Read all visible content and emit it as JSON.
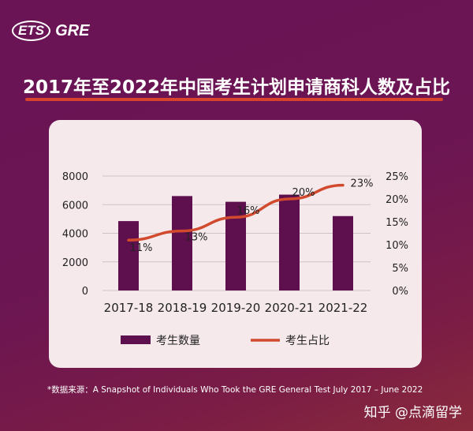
{
  "logo": {
    "ets": "ETS",
    "gre": "GRE"
  },
  "title": "2017年至2022年中国考生计划申请商科人数及占比",
  "chart_data": {
    "type": "bar+line",
    "categories": [
      "2017-18",
      "2018-19",
      "2019-20",
      "2020-21",
      "2021-22"
    ],
    "series": [
      {
        "name": "考生数量",
        "type": "bar",
        "axis": "left",
        "values": [
          4850,
          6600,
          6200,
          6700,
          5200
        ]
      },
      {
        "name": "考生占比",
        "type": "line",
        "axis": "right",
        "values": [
          11,
          13,
          16,
          20,
          23
        ],
        "labels": [
          "11%",
          "13%",
          "16%",
          "20%",
          "23%"
        ]
      }
    ],
    "left_axis": {
      "ylim": [
        0,
        8000
      ],
      "ticks": [
        "0",
        "2000",
        "4000",
        "6000",
        "8000"
      ]
    },
    "right_axis": {
      "ylim": [
        0,
        25
      ],
      "ticks": [
        "0%",
        "5%",
        "10%",
        "15%",
        "20%",
        "25%"
      ]
    },
    "grid": true,
    "legend": "bottom",
    "colors": {
      "bar": "#5e0f4d",
      "line": "#d14a2e"
    }
  },
  "footnote": "*数据来源：A Snapshot of Individuals Who Took the GRE General Test July 2017 – June 2022",
  "watermark": "知乎 @点滴留学"
}
